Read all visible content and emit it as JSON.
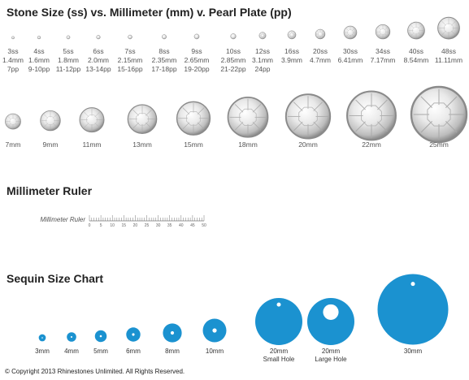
{
  "headings": {
    "stone": "Stone Size (ss) vs. Millimeter (mm) v. Pearl Plate (pp)",
    "ruler": "Millimeter Ruler",
    "sequin": "Sequin Size Chart"
  },
  "colors": {
    "sequin": "#1b92d0",
    "stone_fill": "#e6e6e6",
    "stone_edge": "#8a8a8a"
  },
  "stone_sizes": [
    {
      "ss": "3ss",
      "mm": "1.4mm",
      "pp": "7pp",
      "mm_value": 1.4
    },
    {
      "ss": "4ss",
      "mm": "1.6mm",
      "pp": "9-10pp",
      "mm_value": 1.6
    },
    {
      "ss": "5ss",
      "mm": "1.8mm",
      "pp": "11-12pp",
      "mm_value": 1.8
    },
    {
      "ss": "6ss",
      "mm": "2.0mm",
      "pp": "13-14pp",
      "mm_value": 2.0
    },
    {
      "ss": "7ss",
      "mm": "2.15mm",
      "pp": "15-16pp",
      "mm_value": 2.15
    },
    {
      "ss": "8ss",
      "mm": "2.35mm",
      "pp": "17-18pp",
      "mm_value": 2.35
    },
    {
      "ss": "9ss",
      "mm": "2.65mm",
      "pp": "19-20pp",
      "mm_value": 2.65
    },
    {
      "ss": "10ss",
      "mm": "2.85mm",
      "pp": "21-22pp",
      "mm_value": 2.85
    },
    {
      "ss": "12ss",
      "mm": "3.1mm",
      "pp": "24pp",
      "mm_value": 3.1
    },
    {
      "ss": "16ss",
      "mm": "3.9mm",
      "pp": "",
      "mm_value": 3.9
    },
    {
      "ss": "20ss",
      "mm": "4.7mm",
      "pp": "",
      "mm_value": 4.7
    },
    {
      "ss": "30ss",
      "mm": "6.41mm",
      "pp": "",
      "mm_value": 6.41
    },
    {
      "ss": "34ss",
      "mm": "7.17mm",
      "pp": "",
      "mm_value": 7.17
    },
    {
      "ss": "40ss",
      "mm": "8.54mm",
      "pp": "",
      "mm_value": 8.54
    },
    {
      "ss": "48ss",
      "mm": "11.11mm",
      "pp": "",
      "mm_value": 11.11
    }
  ],
  "large_stones": [
    {
      "label": "7mm",
      "mm_value": 7
    },
    {
      "label": "9mm",
      "mm_value": 9
    },
    {
      "label": "11mm",
      "mm_value": 11
    },
    {
      "label": "13mm",
      "mm_value": 13
    },
    {
      "label": "15mm",
      "mm_value": 15
    },
    {
      "label": "18mm",
      "mm_value": 18
    },
    {
      "label": "20mm",
      "mm_value": 20
    },
    {
      "label": "22mm",
      "mm_value": 22
    },
    {
      "label": "25mm",
      "mm_value": 25
    }
  ],
  "ruler": {
    "label": "Millimeter Ruler",
    "ticks": [
      "0",
      "5",
      "10",
      "15",
      "20",
      "25",
      "30",
      "35",
      "40",
      "45",
      "50"
    ],
    "max_mm": 50
  },
  "sequins": [
    {
      "label": "3mm",
      "sublabel": "",
      "mm_value": 3,
      "hole": "center"
    },
    {
      "label": "4mm",
      "sublabel": "",
      "mm_value": 4,
      "hole": "center"
    },
    {
      "label": "5mm",
      "sublabel": "",
      "mm_value": 5,
      "hole": "center"
    },
    {
      "label": "6mm",
      "sublabel": "",
      "mm_value": 6,
      "hole": "center"
    },
    {
      "label": "8mm",
      "sublabel": "",
      "mm_value": 8,
      "hole": "center"
    },
    {
      "label": "10mm",
      "sublabel": "",
      "mm_value": 10,
      "hole": "center"
    },
    {
      "label": "20mm",
      "sublabel": "Small Hole",
      "mm_value": 20,
      "hole": "small-top"
    },
    {
      "label": "20mm",
      "sublabel": "Large Hole",
      "mm_value": 20,
      "hole": "large-top"
    },
    {
      "label": "30mm",
      "sublabel": "",
      "mm_value": 30,
      "hole": "small-top"
    }
  ],
  "copyright": "© Copyright 2013 Rhinestones Unlimited. All Rights Reserved."
}
